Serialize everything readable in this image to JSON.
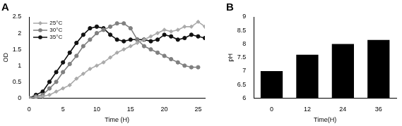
{
  "chart_data": [
    {
      "type": "line",
      "title": "A",
      "x_label": "Time (H)",
      "y_label": "OD",
      "x": [
        0,
        1,
        2,
        3,
        4,
        5,
        6,
        7,
        8,
        9,
        10,
        11,
        12,
        13,
        14,
        15,
        16,
        17,
        18,
        19,
        20,
        21,
        22,
        23,
        24,
        25,
        26
      ],
      "series": [
        {
          "name": "25°C",
          "color": "#aaaaaa",
          "marker": "diamond",
          "values": [
            0,
            0.02,
            0.05,
            0.1,
            0.2,
            0.3,
            0.4,
            0.6,
            0.75,
            0.9,
            1.0,
            1.1,
            1.25,
            1.4,
            1.5,
            1.6,
            1.7,
            1.8,
            1.9,
            2.0,
            2.1,
            2.05,
            2.1,
            2.2,
            2.2,
            2.35,
            2.2
          ]
        },
        {
          "name": "30°C",
          "color": "#808080",
          "marker": "circle",
          "values": [
            0,
            0.05,
            0.1,
            0.3,
            0.5,
            0.8,
            1.05,
            1.3,
            1.6,
            1.8,
            2.0,
            2.1,
            2.2,
            2.3,
            2.3,
            2.15,
            1.8,
            1.6,
            1.5,
            1.4,
            1.3,
            1.2,
            1.1,
            1.0,
            0.95,
            0.95,
            null
          ]
        },
        {
          "name": "35°C",
          "color": "#111111",
          "marker": "circle",
          "values": [
            0,
            0.1,
            0.2,
            0.5,
            0.8,
            1.1,
            1.4,
            1.7,
            1.95,
            2.15,
            2.2,
            2.15,
            1.95,
            1.8,
            1.75,
            1.8,
            1.8,
            1.8,
            1.75,
            1.8,
            1.95,
            1.9,
            1.8,
            1.85,
            1.95,
            1.9,
            1.85
          ]
        }
      ],
      "xlim": [
        0,
        26
      ],
      "xticks": [
        0,
        5,
        10,
        15,
        20,
        25
      ],
      "ylim": [
        0,
        2.5
      ],
      "yticks": [
        0,
        0.5,
        1,
        1.5,
        2,
        2.5
      ],
      "grid": false,
      "legend": "upper left"
    },
    {
      "type": "bar",
      "title": "B",
      "x_label": "Time(H)",
      "y_label": "pH",
      "categories": [
        "0",
        "12",
        "24",
        "36"
      ],
      "values": [
        7.0,
        7.6,
        8.0,
        8.15
      ],
      "color": "#000000",
      "ylim": [
        6,
        9
      ],
      "yticks": [
        6,
        6.5,
        7,
        7.5,
        8,
        8.5,
        9
      ],
      "grid": false
    }
  ]
}
